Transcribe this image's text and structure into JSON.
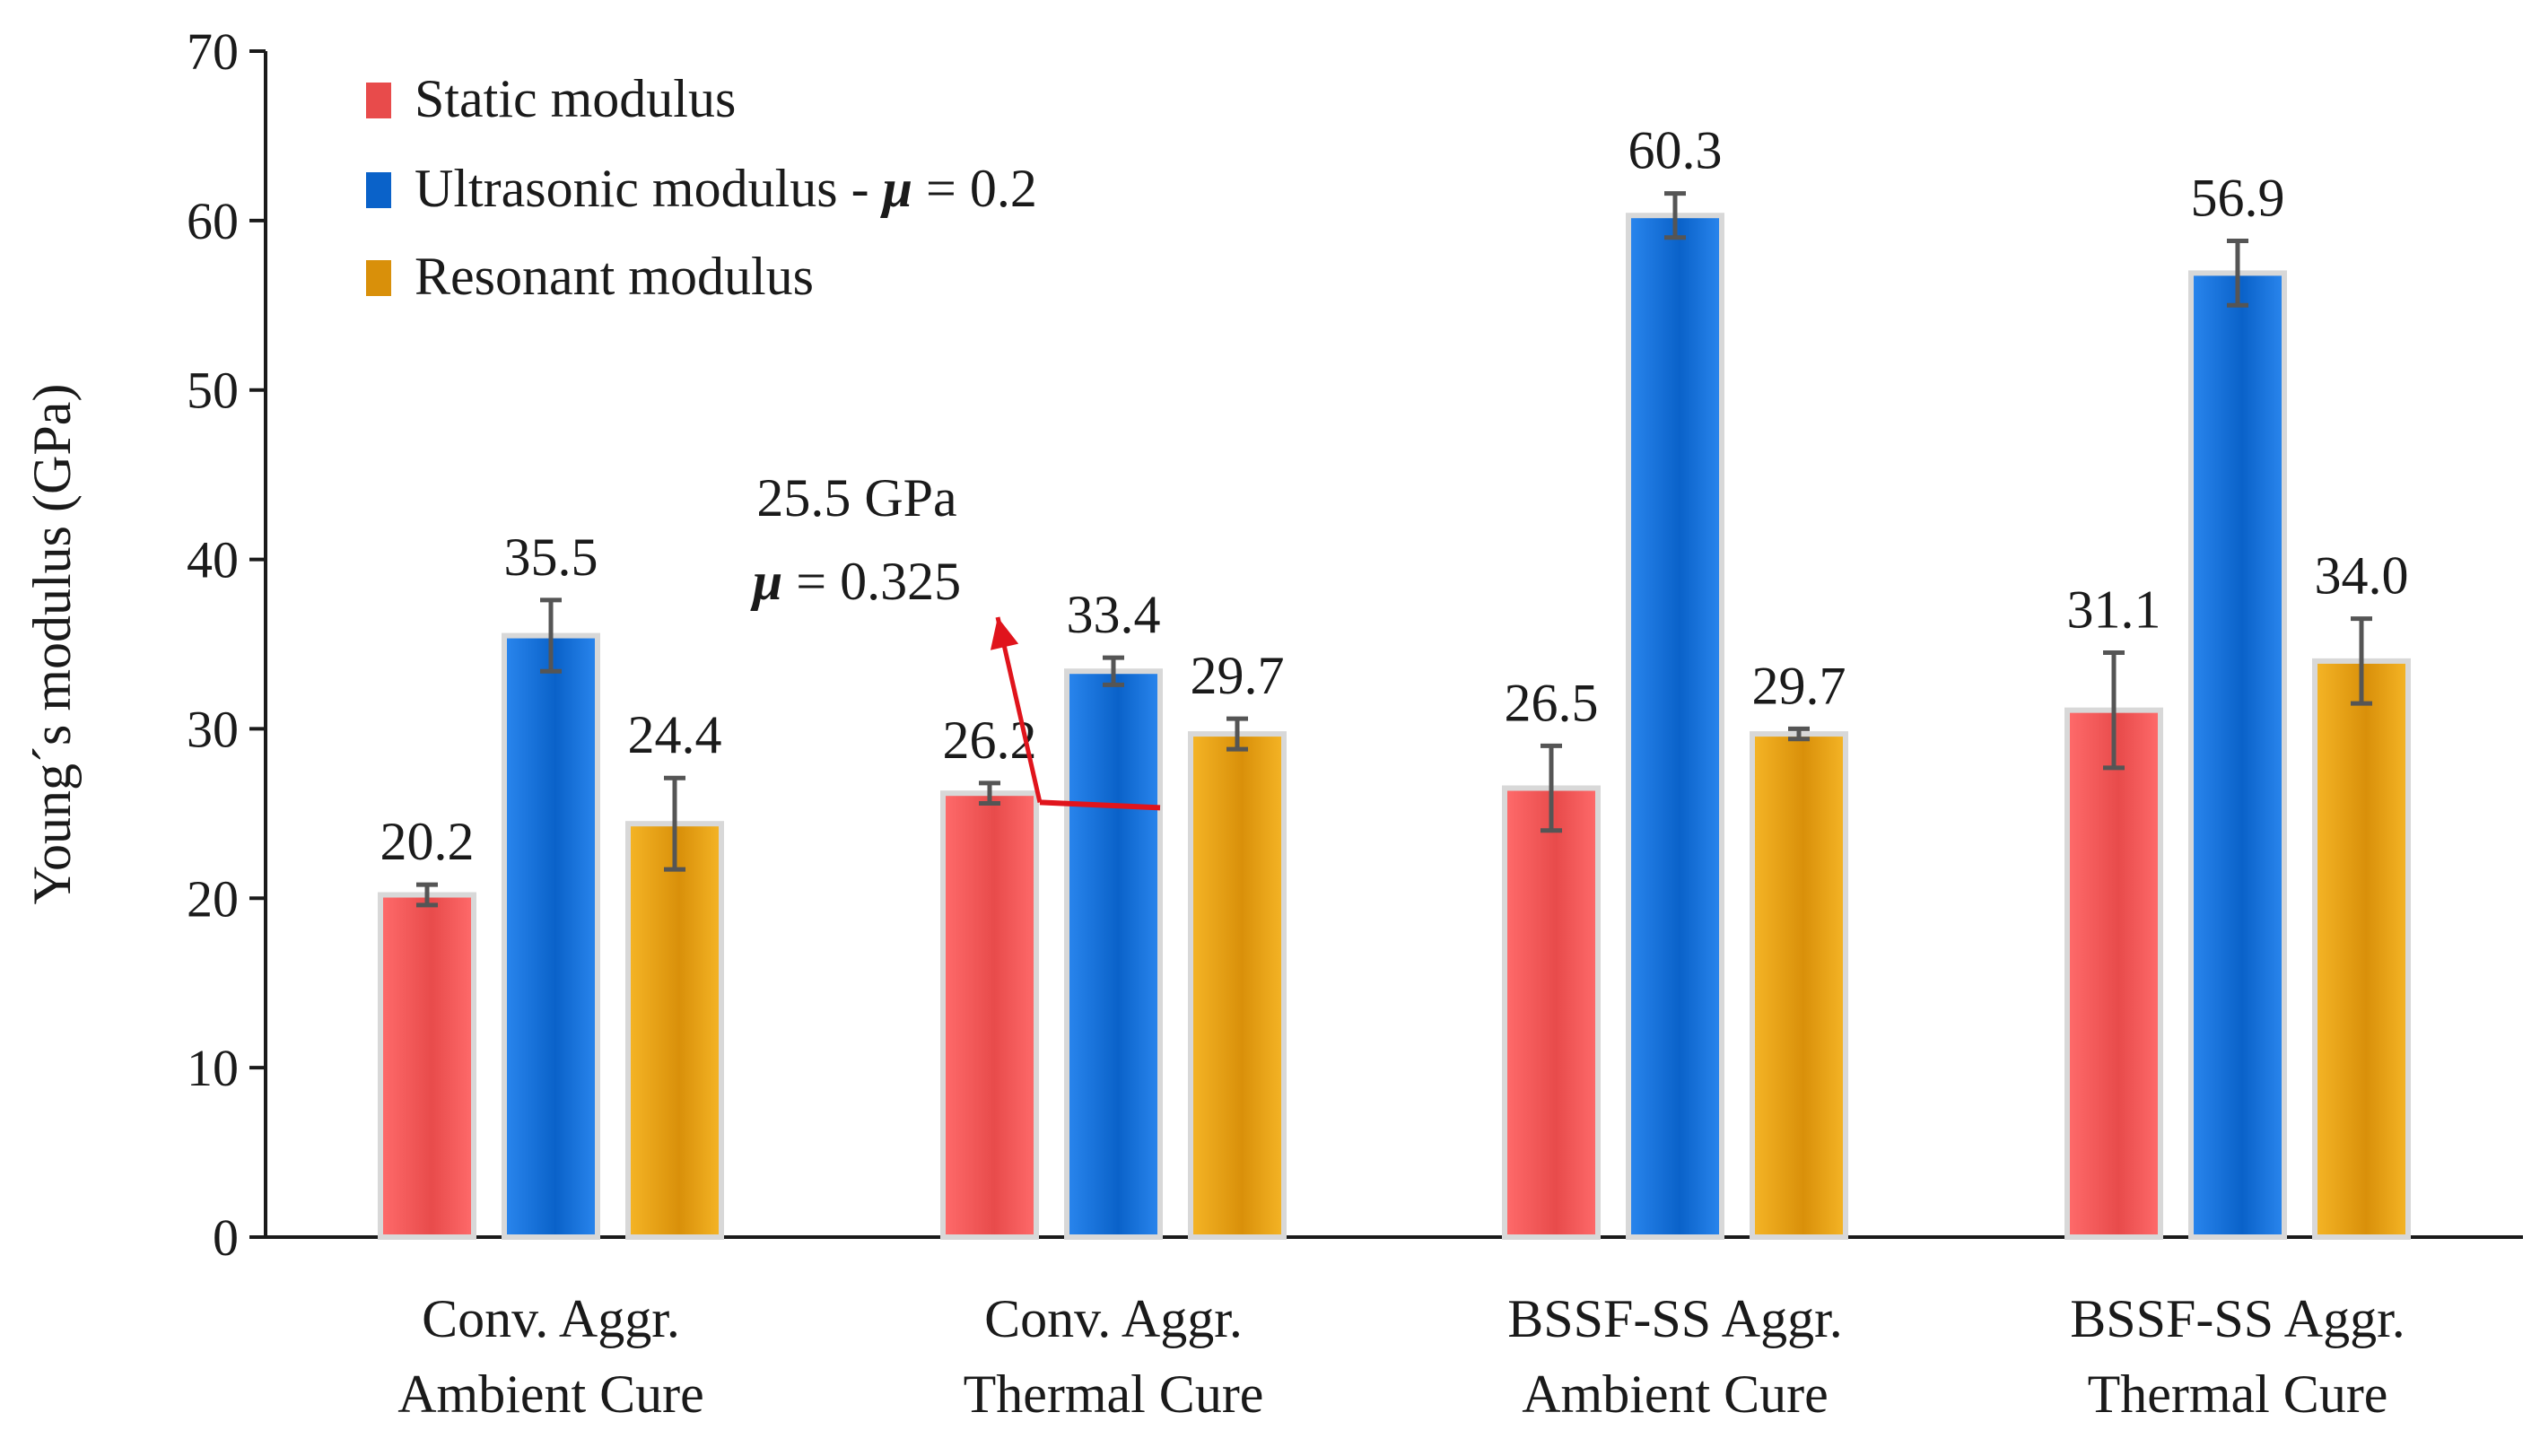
{
  "chart_data": {
    "type": "bar",
    "title": "",
    "xlabel": "",
    "ylabel": "Young´s modulus (GPa)",
    "ylim": [
      0,
      70
    ],
    "yticks": [
      0,
      10,
      20,
      30,
      40,
      50,
      60,
      70
    ],
    "grid": false,
    "legend_position": "top-left",
    "categories": [
      [
        "Conv. Aggr.",
        "Ambient Cure"
      ],
      [
        "Conv. Aggr.",
        "Thermal Cure"
      ],
      [
        "BSSF-SS Aggr.",
        "Ambient Cure"
      ],
      [
        "BSSF-SS Aggr.",
        "Thermal Cure"
      ]
    ],
    "series": [
      {
        "name": "Static modulus",
        "color": "#e84b4b",
        "color_light": "#ff6b6b",
        "values": [
          20.2,
          26.2,
          26.5,
          31.1
        ],
        "labels": [
          "20.2",
          "26.2",
          "26.5",
          "31.1"
        ],
        "errors": [
          0.6,
          0.6,
          2.5,
          3.4
        ]
      },
      {
        "name": "Ultrasonic modulus - ",
        "name_symbol": "μ",
        "name_suffix": " = 0.2",
        "color": "#0a62c9",
        "color_light": "#2a86ee",
        "values": [
          35.5,
          33.4,
          60.3,
          56.9
        ],
        "labels": [
          "35.5",
          "33.4",
          "60.3",
          "56.9"
        ],
        "errors": [
          2.1,
          0.8,
          1.3,
          1.9
        ]
      },
      {
        "name": "Resonant modulus",
        "color": "#d9900a",
        "color_light": "#f5b526",
        "values": [
          24.4,
          29.7,
          29.7,
          34.0
        ],
        "labels": [
          "24.4",
          "29.7",
          "29.7",
          "34.0"
        ],
        "errors": [
          2.7,
          0.9,
          0.3,
          2.5
        ]
      }
    ],
    "annotation": {
      "line1": "25.5 GPa",
      "symbol": "μ",
      "line2_suffix": " = 0.325",
      "value": 25.5,
      "category_index": 1,
      "series_index": 1,
      "color": "#e0141c"
    }
  }
}
